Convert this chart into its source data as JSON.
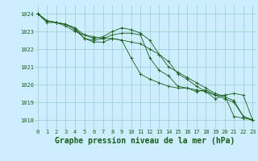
{
  "title": "Graphe pression niveau de la mer (hPa)",
  "background_color": "#cceeff",
  "grid_color": "#99cccc",
  "line_color": "#1a5c1a",
  "hours": [
    0,
    1,
    2,
    3,
    4,
    5,
    6,
    7,
    8,
    9,
    10,
    11,
    12,
    13,
    14,
    15,
    16,
    17,
    18,
    19,
    20,
    21,
    22,
    23
  ],
  "series": [
    [
      1024.0,
      1023.6,
      1023.5,
      1023.4,
      1023.2,
      1022.6,
      1022.5,
      1022.6,
      1022.8,
      1022.9,
      1022.9,
      1022.8,
      1021.5,
      1020.8,
      1020.5,
      1019.9,
      1019.8,
      1019.6,
      1019.7,
      1019.4,
      1019.4,
      1018.2,
      1018.1,
      1018.0
    ],
    [
      1024.0,
      1023.6,
      1023.5,
      1023.4,
      1023.2,
      1022.8,
      1022.6,
      1022.7,
      1023.0,
      1023.2,
      1023.1,
      1022.9,
      1022.5,
      1021.7,
      1021.0,
      1020.7,
      1020.4,
      1020.1,
      1019.8,
      1019.5,
      1019.3,
      1019.1,
      1018.2,
      1018.0
    ],
    [
      1024.0,
      1023.6,
      1023.5,
      1023.4,
      1023.1,
      1022.6,
      1022.4,
      1022.4,
      1022.6,
      1022.5,
      1021.5,
      1020.6,
      1020.3,
      1020.1,
      1019.9,
      1019.8,
      1019.8,
      1019.7,
      1019.6,
      1019.4,
      1019.2,
      1019.0,
      1018.2,
      1018.0
    ],
    [
      1024.0,
      1023.5,
      1023.5,
      1023.3,
      1023.0,
      1022.8,
      1022.7,
      1022.6,
      1022.6,
      1022.5,
      1022.4,
      1022.3,
      1022.0,
      1021.7,
      1021.3,
      1020.6,
      1020.3,
      1019.9,
      1019.6,
      1019.2,
      1019.4,
      1019.5,
      1019.4,
      1018.0
    ]
  ],
  "ylim": [
    1017.5,
    1024.5
  ],
  "yticks": [
    1018,
    1019,
    1020,
    1021,
    1022,
    1023,
    1024
  ],
  "xticks": [
    0,
    1,
    2,
    3,
    4,
    5,
    6,
    7,
    8,
    9,
    10,
    11,
    12,
    13,
    14,
    15,
    16,
    17,
    18,
    19,
    20,
    21,
    22,
    23
  ],
  "title_fontsize": 7,
  "tick_fontsize": 5,
  "marker": "+",
  "markersize": 2.5,
  "linewidth": 0.6
}
